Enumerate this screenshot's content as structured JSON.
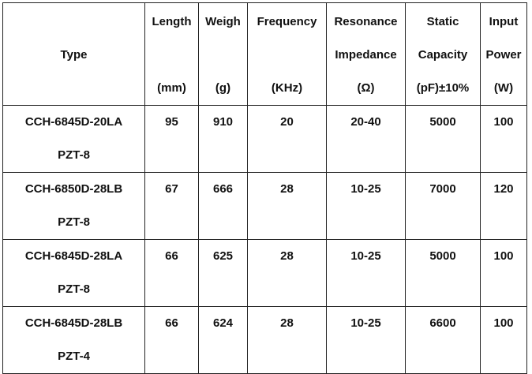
{
  "table": {
    "header": [
      {
        "middle": "Type"
      },
      {
        "top": "Length",
        "bottom": "(mm)"
      },
      {
        "top": "Weigh",
        "bottom": "(g)"
      },
      {
        "top": "Frequency",
        "bottom": "(KHz)"
      },
      {
        "top": "Resonance",
        "middle": "Impedance",
        "bottom": "(Ω)"
      },
      {
        "top": "Static",
        "middle": "Capacity",
        "bottom": "(pF)±10%"
      },
      {
        "top": "Input",
        "middle": "Power",
        "bottom": "(W)"
      }
    ],
    "rows": [
      [
        [
          "CCH-6845D-20LA",
          "PZT-8"
        ],
        "95",
        "910",
        "20",
        "20-40",
        "5000",
        "100"
      ],
      [
        [
          "CCH-6850D-28LB",
          "PZT-8"
        ],
        "67",
        "666",
        "28",
        "10-25",
        "7000",
        "120"
      ],
      [
        [
          "CCH-6845D-28LA",
          "PZT-8"
        ],
        "66",
        "625",
        "28",
        "10-25",
        "5000",
        "100"
      ],
      [
        [
          "CCH-6845D-28LB",
          "PZT-4"
        ],
        "66",
        "624",
        "28",
        "10-25",
        "6600",
        "100"
      ]
    ]
  }
}
